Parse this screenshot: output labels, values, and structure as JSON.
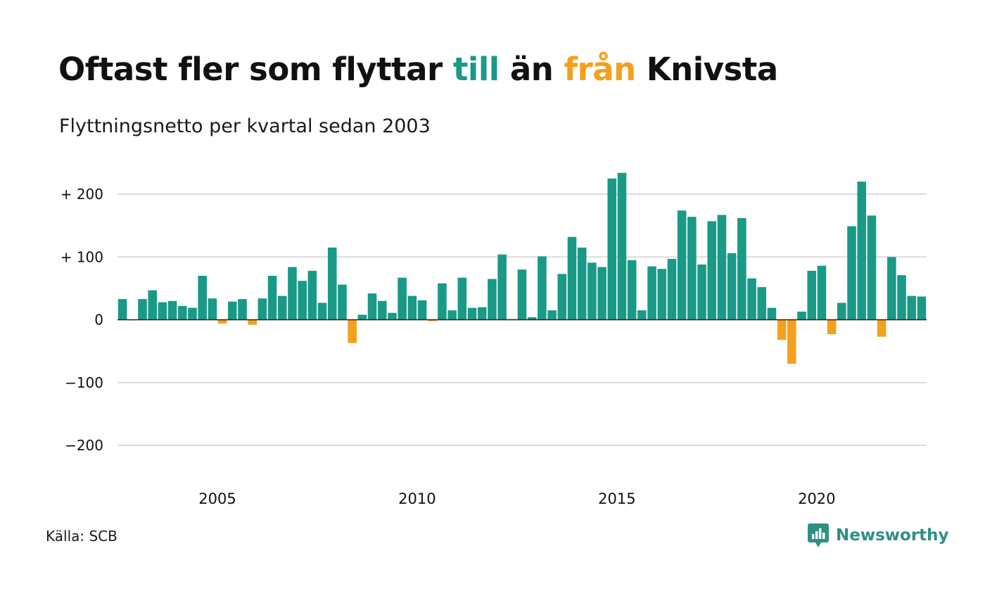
{
  "title": {
    "part1": "Oftast fler som flyttar ",
    "highlight_to": "till",
    "part2": " än ",
    "highlight_from": "från",
    "part3": " Knivsta"
  },
  "subtitle": "Flyttningsnetto per kvartal sedan 2003",
  "source": "Källa: SCB",
  "brand": {
    "name": "Newsworthy",
    "logo_icon": "newsworthy-chart-bubble-icon"
  },
  "colors": {
    "positive": "#1a9987",
    "negative": "#f5a01d",
    "grid": "#dcdcdc",
    "baseline": "#222222"
  },
  "chart_data": {
    "type": "bar",
    "x_start": "2003 Q1",
    "x_step": "quarter",
    "ylim": [
      -250,
      250
    ],
    "y_ticks": [
      200,
      100,
      0,
      -100,
      -200
    ],
    "y_tick_labels": [
      "+ 200",
      "+ 100",
      "0",
      "−100",
      "−200"
    ],
    "x_ticks": [
      2005,
      2010,
      2015,
      2020
    ],
    "grid": true,
    "values": [
      33,
      0,
      33,
      47,
      28,
      30,
      22,
      19,
      70,
      34,
      -6,
      29,
      33,
      -8,
      34,
      70,
      38,
      84,
      62,
      78,
      27,
      115,
      56,
      -37,
      8,
      42,
      30,
      11,
      67,
      38,
      31,
      -2,
      58,
      15,
      67,
      19,
      20,
      65,
      104,
      1,
      80,
      4,
      101,
      15,
      73,
      132,
      115,
      91,
      84,
      225,
      234,
      95,
      15,
      85,
      81,
      97,
      174,
      164,
      88,
      157,
      167,
      106,
      162,
      66,
      52,
      19,
      -32,
      -70,
      13,
      78,
      86,
      -23,
      27,
      149,
      220,
      166,
      -27,
      100,
      71,
      38,
      37
    ]
  }
}
